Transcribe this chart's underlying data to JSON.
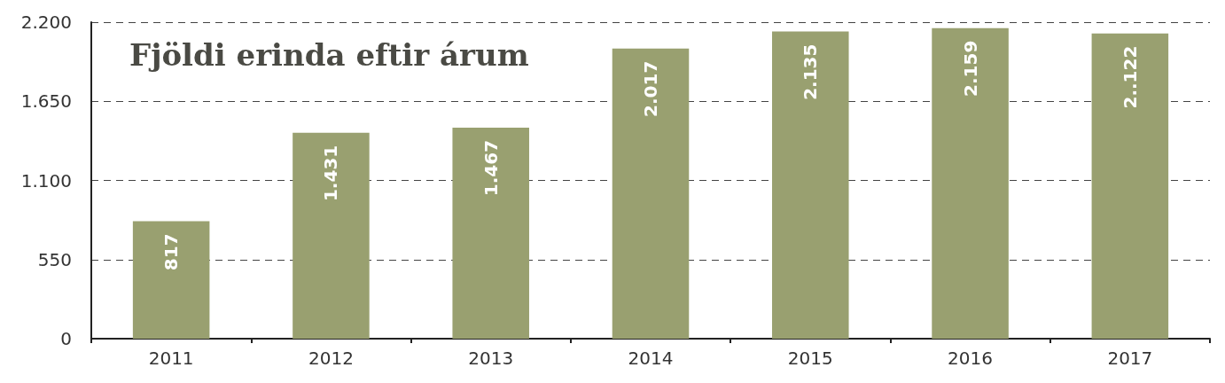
{
  "chart_data": {
    "type": "bar",
    "title": "Fjöldi erinda eftir árum",
    "categories": [
      "2011",
      "2012",
      "2013",
      "2014",
      "2015",
      "2016",
      "2017"
    ],
    "values": [
      817,
      1431,
      1467,
      2017,
      2135,
      2159,
      2122
    ],
    "value_labels": [
      "817",
      "1.431",
      "1.467",
      "2.017",
      "2.135",
      "2.159",
      "2..122"
    ],
    "color": "#99a070",
    "ylim": [
      0,
      2200
    ],
    "yticks": [
      {
        "value": 0,
        "label": "0"
      },
      {
        "value": 550,
        "label": "550"
      },
      {
        "value": 1100,
        "label": "1.100"
      },
      {
        "value": 1650,
        "label": "1.650"
      },
      {
        "value": 2200,
        "label": "2.200"
      }
    ],
    "grid": "y"
  }
}
